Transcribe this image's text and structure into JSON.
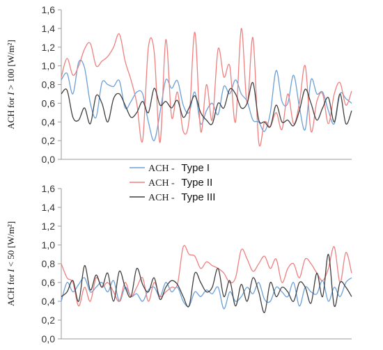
{
  "chart_data": [
    {
      "type": "line",
      "ylabel_prefix": "ACH for ",
      "ylabel_var": "I",
      "ylabel_suffix": " > 100 [W/m²]",
      "ylim": [
        0,
        1.6
      ],
      "yticks": [
        "0,0",
        "0,2",
        "0,4",
        "0,6",
        "0,8",
        "1,0",
        "1,2",
        "1,4",
        "1,6"
      ],
      "x": [
        0,
        2,
        4,
        6,
        8,
        10,
        12,
        14,
        16,
        18,
        20,
        22,
        24,
        26,
        28,
        30,
        32,
        34,
        36,
        38,
        40,
        42,
        44,
        46,
        48,
        50,
        52,
        54,
        56,
        58,
        60,
        62,
        64,
        66,
        68,
        70,
        72,
        74,
        76,
        78,
        80,
        82,
        84,
        86,
        88,
        90,
        92,
        94,
        96,
        98,
        100
      ],
      "series": [
        {
          "name": "Type I",
          "color": "#6a9fd8",
          "values": [
            0.85,
            0.92,
            0.7,
            1.04,
            0.98,
            0.6,
            0.45,
            0.82,
            0.8,
            0.78,
            0.84,
            0.55,
            0.62,
            0.72,
            0.7,
            0.4,
            0.2,
            0.5,
            0.85,
            0.76,
            0.84,
            0.58,
            0.5,
            0.72,
            0.38,
            0.52,
            0.6,
            0.48,
            0.78,
            0.7,
            0.85,
            0.7,
            0.62,
            0.42,
            0.4,
            0.3,
            0.5,
            0.95,
            0.62,
            0.6,
            0.9,
            0.56,
            0.32,
            0.85,
            0.7,
            0.72,
            0.52,
            0.38,
            0.7,
            0.65,
            0.6
          ]
        },
        {
          "name": "Type II",
          "color": "#ee7f7f",
          "values": [
            0.88,
            1.08,
            0.9,
            1.0,
            1.18,
            1.24,
            1.0,
            1.05,
            1.1,
            1.2,
            1.34,
            1.05,
            0.85,
            0.6,
            0.2,
            1.2,
            1.15,
            0.18,
            1.28,
            0.45,
            0.72,
            0.3,
            0.42,
            1.36,
            0.3,
            0.8,
            0.42,
            1.18,
            0.88,
            1.0,
            0.4,
            1.4,
            0.6,
            1.3,
            0.18,
            0.4,
            0.35,
            0.5,
            0.32,
            0.7,
            0.38,
            0.6,
            1.0,
            0.3,
            0.62,
            0.7,
            0.38,
            0.7,
            0.82,
            0.58,
            0.73
          ]
        },
        {
          "name": "Type III",
          "color": "#3d3d3d",
          "values": [
            0.7,
            0.74,
            0.45,
            0.42,
            0.55,
            0.38,
            0.68,
            0.6,
            0.4,
            0.65,
            0.7,
            0.58,
            0.45,
            0.5,
            0.62,
            0.5,
            0.76,
            0.58,
            0.62,
            0.55,
            0.63,
            0.45,
            0.55,
            0.68,
            0.5,
            0.42,
            0.38,
            0.6,
            0.55,
            0.75,
            0.7,
            0.55,
            0.6,
            0.82,
            0.42,
            0.4,
            0.35,
            0.58,
            0.4,
            0.42,
            0.36,
            0.52,
            0.75,
            0.6,
            0.42,
            0.55,
            0.66,
            0.4,
            0.7,
            0.38,
            0.52
          ]
        }
      ]
    },
    {
      "type": "line",
      "ylabel_prefix": "ACH for ",
      "ylabel_var": "I",
      "ylabel_suffix": " < 50 [W/m²]",
      "ylim": [
        0,
        1.6
      ],
      "yticks": [
        "0,0",
        "0,2",
        "0,4",
        "0,6",
        "0,8",
        "1,0",
        "1,2",
        "1,4",
        "1,6"
      ],
      "x": [
        0,
        2,
        4,
        6,
        8,
        10,
        12,
        14,
        16,
        18,
        20,
        22,
        24,
        26,
        28,
        30,
        32,
        34,
        36,
        38,
        40,
        42,
        44,
        46,
        48,
        50,
        52,
        54,
        56,
        58,
        60,
        62,
        64,
        66,
        68,
        70,
        72,
        74,
        76,
        78,
        80,
        82,
        84,
        86,
        88,
        90,
        92,
        94,
        96,
        98,
        100
      ],
      "series": [
        {
          "name": "Type I",
          "color": "#6a9fd8",
          "values": [
            0.4,
            0.6,
            0.5,
            0.58,
            0.65,
            0.5,
            0.55,
            0.6,
            0.5,
            0.62,
            0.4,
            0.55,
            0.45,
            0.48,
            0.4,
            0.52,
            0.55,
            0.45,
            0.6,
            0.5,
            0.55,
            0.4,
            0.35,
            0.5,
            0.45,
            0.52,
            0.48,
            0.55,
            0.32,
            0.5,
            0.4,
            0.45,
            0.55,
            0.48,
            0.6,
            0.42,
            0.4,
            0.55,
            0.5,
            0.45,
            0.6,
            0.35,
            0.55,
            0.5,
            0.48,
            0.62,
            0.4,
            0.55,
            0.45,
            0.6,
            0.65
          ]
        },
        {
          "name": "Type II",
          "color": "#ee7f7f",
          "values": [
            0.8,
            0.65,
            0.6,
            0.35,
            0.55,
            0.4,
            0.65,
            0.55,
            0.6,
            0.5,
            0.4,
            0.6,
            0.45,
            0.55,
            0.65,
            0.4,
            0.6,
            0.45,
            0.5,
            0.55,
            0.58,
            0.98,
            0.9,
            0.88,
            0.75,
            0.82,
            0.78,
            0.75,
            0.7,
            0.6,
            0.65,
            0.95,
            0.85,
            0.72,
            0.8,
            0.88,
            0.75,
            0.85,
            0.6,
            0.75,
            0.8,
            0.65,
            0.85,
            0.8,
            0.7,
            0.62,
            0.75,
            0.98,
            0.6,
            0.92,
            0.7
          ]
        },
        {
          "name": "Type III",
          "color": "#3d3d3d",
          "values": [
            0.45,
            0.5,
            0.62,
            0.4,
            0.78,
            0.52,
            0.68,
            0.55,
            0.7,
            0.4,
            0.72,
            0.55,
            0.45,
            0.75,
            0.58,
            0.5,
            0.65,
            0.42,
            0.55,
            0.62,
            0.58,
            0.45,
            0.35,
            0.7,
            0.6,
            0.5,
            0.55,
            0.75,
            0.45,
            0.62,
            0.35,
            0.58,
            0.4,
            0.65,
            0.5,
            0.28,
            0.6,
            0.45,
            0.55,
            0.5,
            0.4,
            0.6,
            0.55,
            0.38,
            0.7,
            0.45,
            0.9,
            0.35,
            0.6,
            0.55,
            0.45
          ]
        }
      ]
    }
  ],
  "legend": {
    "prefix": "ACH - ",
    "entries": [
      "Type I",
      "Type II",
      "Type III"
    ]
  }
}
